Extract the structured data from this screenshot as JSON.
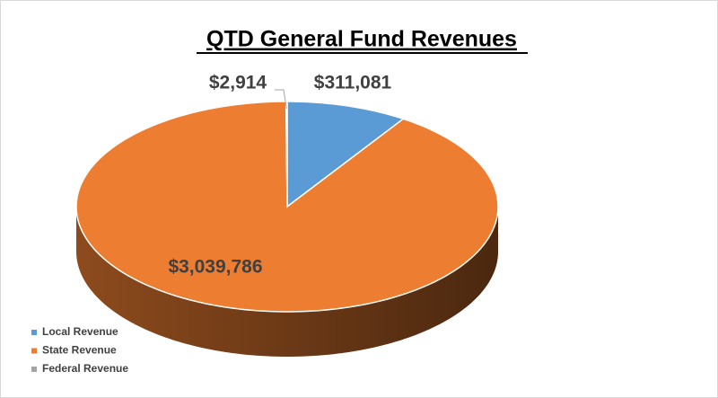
{
  "chart_data": {
    "type": "pie",
    "title": "QTD General Fund Revenues",
    "categories": [
      "Local Revenue",
      "State Revenue",
      "Federal Revenue"
    ],
    "values": [
      311081,
      3039786,
      2914
    ],
    "value_labels": [
      "$311,081",
      "$3,039,786",
      "$2,914"
    ],
    "colors": [
      "#5b9bd5",
      "#ed7d31",
      "#a5a5a5"
    ],
    "legend": "bottom-left"
  }
}
